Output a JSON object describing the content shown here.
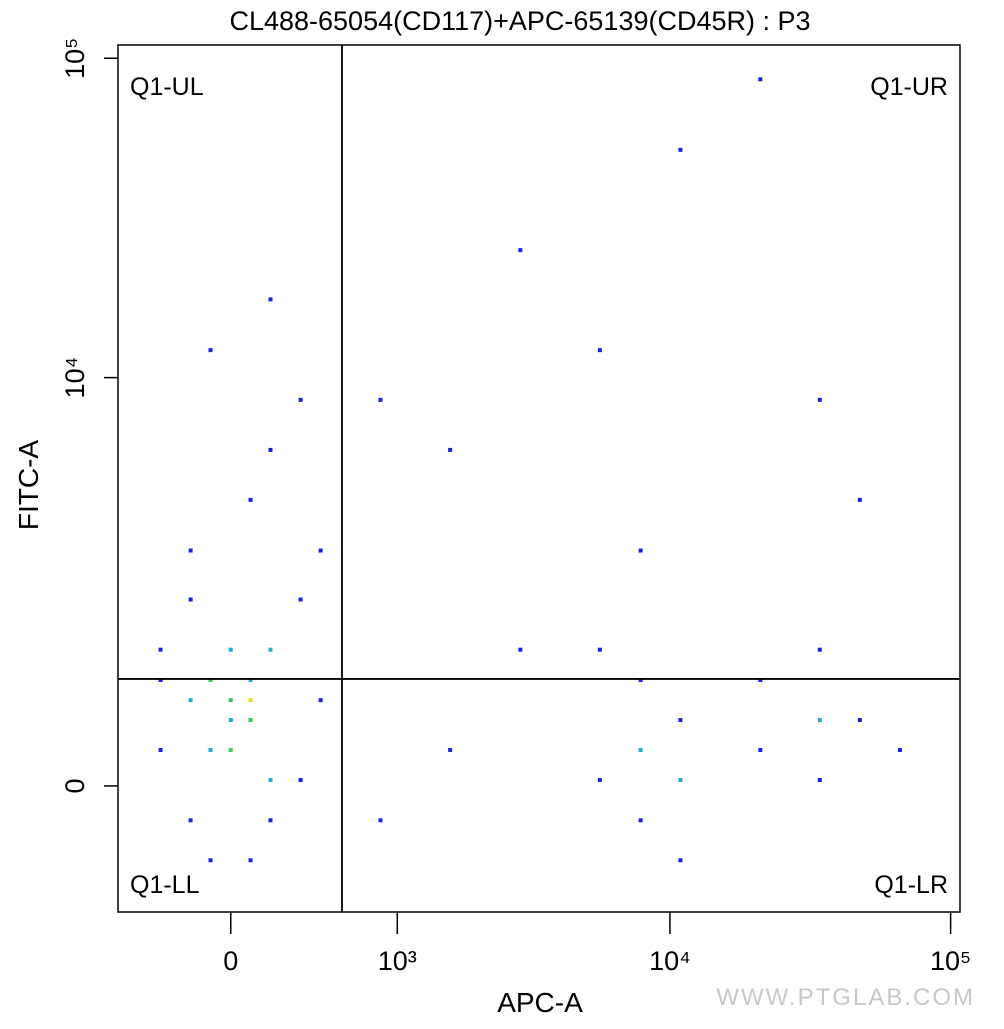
{
  "chart_data": {
    "type": "scatter",
    "title": "CL488-65054(CD117)+APC-65139(CD45R) : P3",
    "x_label": "APC-A",
    "y_label": "FITC-A",
    "scale": "biexponential",
    "xlim": [
      -580,
      108000
    ],
    "ylim": [
      -1100,
      110000
    ],
    "xticks": [
      0,
      {
        "value": 1000,
        "label": "10³"
      },
      {
        "value": 10000,
        "label": "10⁴"
      },
      {
        "value": 100000,
        "label": "10⁵"
      }
    ],
    "yticks": [
      0,
      {
        "value": 10000,
        "label": "10⁴"
      },
      {
        "value": 100000,
        "label": "10⁵"
      }
    ],
    "gate": {
      "x": 570,
      "y": 900
    },
    "quadrants": {
      "UL": "Q1-UL",
      "UR": "Q1-UR",
      "LL": "Q1-LL",
      "LR": "Q1-LR"
    },
    "watermark": "WWW.PTGLAB.COM",
    "series": [
      {
        "color": "#1c1cf2",
        "x": [
          -332,
          -183,
          -91,
          181,
          330,
          440,
          -332,
          330,
          -183,
          89,
          181,
          330,
          -91,
          181,
          -332,
          440,
          89,
          -183,
          852,
          1605,
          2910,
          5620,
          10900,
          21000,
          34200,
          47500,
          7860,
          2910,
          5620,
          7860,
          10900,
          7860,
          5620,
          21000,
          34200,
          47500,
          34200,
          66000,
          10900,
          21000,
          1605,
          852
        ],
        "y": [
          277,
          -265,
          -595,
          -265,
          45,
          697,
          1215,
          1890,
          2790,
          4090,
          5910,
          8510,
          12200,
          17600,
          889,
          2790,
          -595,
          1890,
          8510,
          5910,
          25100,
          12200,
          51700,
          85900,
          8510,
          4090,
          2790,
          1215,
          45,
          -265,
          522,
          889,
          1215,
          277,
          45,
          522,
          1215,
          277,
          -595,
          889,
          277,
          -265
        ]
      },
      {
        "color": "#18b0d8",
        "x": [
          0,
          -91,
          89,
          181,
          -183,
          7860,
          10900,
          34200,
          0,
          181
        ],
        "y": [
          522,
          277,
          889,
          45,
          697,
          277,
          45,
          522,
          1215,
          1215
        ]
      },
      {
        "color": "#3cc85a",
        "x": [
          0,
          89,
          -91,
          0
        ],
        "y": [
          697,
          522,
          889,
          277
        ]
      },
      {
        "color": "#e6e01e",
        "x": [
          89
        ],
        "y": [
          697
        ]
      }
    ]
  }
}
